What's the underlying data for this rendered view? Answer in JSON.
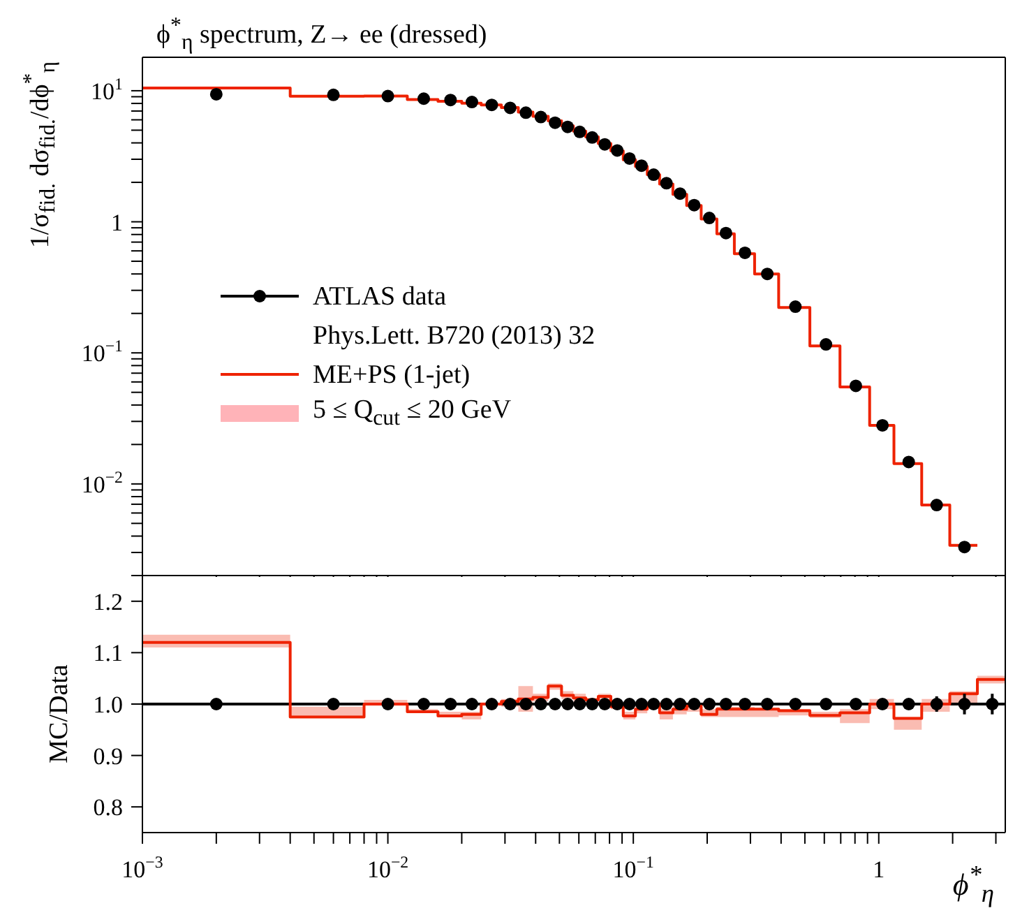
{
  "chart_data": [
    {
      "type": "histogram",
      "title": "ϕ$^{*}$$_{η}$ spectrum, Z→ ee (dressed)",
      "ylabel": "1/σ$_{fid.}$ dσ$_{fid.}$/dϕ$^{*}$$_{η}$",
      "log": "xy",
      "legend": "left",
      "tick_labels": "y",
      "annotations": [
        "Phys.Lett. B720 (2013) 32"
      ],
      "bins": [
        0.001,
        0.004,
        0.008,
        0.012,
        0.016,
        0.02,
        0.024,
        0.029,
        0.034,
        0.039,
        0.045,
        0.051,
        0.057,
        0.064,
        0.072,
        0.081,
        0.091,
        0.102,
        0.114,
        0.128,
        0.145,
        0.165,
        0.189,
        0.219,
        0.258,
        0.312,
        0.391,
        0.524,
        0.695,
        0.918,
        1.153,
        1.496,
        1.947,
        2.522
      ],
      "xlim": [
        0.001,
        3.277
      ],
      "xticks": [
        {
          "value": 0.001,
          "label": null
        },
        {
          "value": 0.002,
          "label": null
        },
        {
          "value": 0.003,
          "label": null
        },
        {
          "value": 0.004,
          "label": null
        },
        {
          "value": 0.005,
          "label": null
        },
        {
          "value": 0.006,
          "label": null
        },
        {
          "value": 0.007,
          "label": null
        },
        {
          "value": 0.008,
          "label": null
        },
        {
          "value": 0.009,
          "label": null
        },
        {
          "value": 0.01,
          "label": null
        },
        {
          "value": 0.02,
          "label": null
        },
        {
          "value": 0.03,
          "label": null
        },
        {
          "value": 0.04,
          "label": null
        },
        {
          "value": 0.05,
          "label": null
        },
        {
          "value": 0.06,
          "label": null
        },
        {
          "value": 0.07,
          "label": null
        },
        {
          "value": 0.08,
          "label": null
        },
        {
          "value": 0.09,
          "label": null
        },
        {
          "value": 0.1,
          "label": null
        },
        {
          "value": 0.2,
          "label": null
        },
        {
          "value": 0.3,
          "label": null
        },
        {
          "value": 0.4,
          "label": null
        },
        {
          "value": 0.5,
          "label": null
        },
        {
          "value": 0.6,
          "label": null
        },
        {
          "value": 0.7,
          "label": null
        },
        {
          "value": 0.8,
          "label": null
        },
        {
          "value": 0.9,
          "label": null
        },
        {
          "value": 1,
          "label": null
        },
        {
          "value": 2,
          "label": null
        },
        {
          "value": 3,
          "label": null
        }
      ],
      "ylim": [
        0.002,
        18
      ],
      "yticks": [
        {
          "value": 0.002,
          "label": null
        },
        {
          "value": 0.003,
          "label": null
        },
        {
          "value": 0.004,
          "label": null
        },
        {
          "value": 0.005,
          "label": null
        },
        {
          "value": 0.006,
          "label": null
        },
        {
          "value": 0.007,
          "label": null
        },
        {
          "value": 0.008,
          "label": null
        },
        {
          "value": 0.009,
          "label": null
        },
        {
          "value": 0.01,
          "label": "10$^{−2}$"
        },
        {
          "value": 0.02,
          "label": null
        },
        {
          "value": 0.03,
          "label": null
        },
        {
          "value": 0.04,
          "label": null
        },
        {
          "value": 0.05,
          "label": null
        },
        {
          "value": 0.06,
          "label": null
        },
        {
          "value": 0.07,
          "label": null
        },
        {
          "value": 0.08,
          "label": null
        },
        {
          "value": 0.09,
          "label": null
        },
        {
          "value": 0.1,
          "label": "10$^{−1}$"
        },
        {
          "value": 0.2,
          "label": null
        },
        {
          "value": 0.3,
          "label": null
        },
        {
          "value": 0.4,
          "label": null
        },
        {
          "value": 0.5,
          "label": null
        },
        {
          "value": 0.6,
          "label": null
        },
        {
          "value": 0.7,
          "label": null
        },
        {
          "value": 0.8,
          "label": null
        },
        {
          "value": 0.9,
          "label": null
        },
        1,
        {
          "value": 2,
          "label": null
        },
        {
          "value": 3,
          "label": null
        },
        {
          "value": 4,
          "label": null
        },
        {
          "value": 5,
          "label": null
        },
        {
          "value": 6,
          "label": null
        },
        {
          "value": 7,
          "label": null
        },
        {
          "value": 8,
          "label": null
        },
        {
          "value": 9,
          "label": null
        },
        {
          "value": 10,
          "label": "10$^{1}$"
        }
      ],
      "series": [
        {
          "name": "ATLAS data",
          "type": "scatter",
          "color": "#000000",
          "marker": "circle",
          "x": [
            0.002,
            0.006,
            0.01,
            0.014,
            0.018,
            0.022,
            0.0265,
            0.0315,
            0.0365,
            0.042,
            0.048,
            0.054,
            0.0605,
            0.068,
            0.0765,
            0.086,
            0.0965,
            0.108,
            0.121,
            0.1365,
            0.155,
            0.177,
            0.204,
            0.2385,
            0.285,
            0.3515,
            0.4575,
            0.6095,
            0.8065,
            1.0355,
            1.3245,
            1.7215,
            2.2345
          ],
          "values": [
            9.4,
            9.3,
            9.1,
            8.7,
            8.5,
            8.2,
            7.8,
            7.4,
            6.8,
            6.3,
            5.7,
            5.3,
            4.85,
            4.4,
            3.9,
            3.5,
            3.04,
            2.68,
            2.29,
            1.97,
            1.64,
            1.34,
            1.07,
            0.82,
            0.58,
            0.4,
            0.225,
            0.116,
            0.056,
            0.028,
            0.0147,
            0.0069,
            0.0033
          ]
        },
        {
          "name": "ME+PS (1-jet)",
          "color": "#ee2200",
          "values": [
            10.5,
            9.07,
            9.1,
            8.57,
            8.3,
            8.04,
            7.8,
            7.44,
            6.87,
            6.38,
            5.9,
            5.39,
            4.91,
            4.44,
            3.96,
            3.48,
            2.97,
            2.65,
            2.29,
            1.94,
            1.62,
            1.33,
            1.05,
            0.81,
            0.57,
            0.4,
            0.222,
            0.113,
            0.055,
            0.028,
            0.0143,
            0.0069,
            0.0034
          ]
        },
        {
          "name": "5 ≤ Q$_{cut}$ ≤ 20 GeV",
          "type": "area",
          "color": "#ffb3b8"
        }
      ]
    },
    {
      "type": "step",
      "xlabel": "ϕ$^{*}$$_{η}$",
      "ylabel": "MC/Data",
      "log": "x",
      "xlim": [
        0.001,
        3.277
      ],
      "xticks": [
        {
          "value": 0.001,
          "label": "10$^{−3}$"
        },
        {
          "value": 0.002,
          "label": null
        },
        {
          "value": 0.003,
          "label": null
        },
        {
          "value": 0.004,
          "label": null
        },
        {
          "value": 0.005,
          "label": null
        },
        {
          "value": 0.006,
          "label": null
        },
        {
          "value": 0.007,
          "label": null
        },
        {
          "value": 0.008,
          "label": null
        },
        {
          "value": 0.009,
          "label": null
        },
        {
          "value": 0.01,
          "label": "10$^{−2}$"
        },
        {
          "value": 0.02,
          "label": null
        },
        {
          "value": 0.03,
          "label": null
        },
        {
          "value": 0.04,
          "label": null
        },
        {
          "value": 0.05,
          "label": null
        },
        {
          "value": 0.06,
          "label": null
        },
        {
          "value": 0.07,
          "label": null
        },
        {
          "value": 0.08,
          "label": null
        },
        {
          "value": 0.09,
          "label": null
        },
        {
          "value": 0.1,
          "label": "10$^{−1}$"
        },
        {
          "value": 0.2,
          "label": null
        },
        {
          "value": 0.3,
          "label": null
        },
        {
          "value": 0.4,
          "label": null
        },
        {
          "value": 0.5,
          "label": null
        },
        {
          "value": 0.6,
          "label": null
        },
        {
          "value": 0.7,
          "label": null
        },
        {
          "value": 0.8,
          "label": null
        },
        {
          "value": 0.9,
          "label": null
        },
        1,
        {
          "value": 2,
          "label": null
        },
        {
          "value": 3,
          "label": null
        }
      ],
      "ylim": [
        0.75,
        1.25
      ],
      "yticks": [
        0.8,
        0.9,
        {
          "value": 1,
          "label": "1.0"
        },
        1.1,
        1.2
      ],
      "ref_lines": [
        {
          "axis": "y",
          "value": 1,
          "color": "#000000"
        }
      ],
      "series": [
        {
          "color": "#ee2200",
          "x": [
            0.001,
            0.004,
            0.008,
            0.012,
            0.016,
            0.02,
            0.024,
            0.029,
            0.034,
            0.039,
            0.045,
            0.051,
            0.057,
            0.064,
            0.072,
            0.081,
            0.091,
            0.102,
            0.114,
            0.128,
            0.145,
            0.165,
            0.189,
            0.219,
            0.258,
            0.312,
            0.391,
            0.524,
            0.695,
            0.918,
            1.153,
            1.496,
            1.947,
            2.522,
            3.277
          ],
          "values": [
            1.12,
            0.975,
            1.0,
            0.985,
            0.977,
            0.98,
            1.0,
            1.005,
            1.01,
            1.013,
            1.035,
            1.017,
            1.012,
            1.008,
            1.015,
            0.995,
            0.977,
            0.99,
            1.0,
            0.983,
            0.99,
            0.996,
            0.98,
            0.99,
            0.99,
            0.99,
            0.987,
            0.978,
            0.983,
            1.0,
            0.972,
            1.0,
            1.02,
            1.048,
            1.048
          ],
          "lower": [
            1.11,
            0.975,
            0.997,
            0.983,
            0.975,
            0.97,
            0.998,
            0.995,
            0.985,
            1.005,
            1.028,
            1.01,
            1.005,
            1.0,
            1.008,
            0.99,
            0.97,
            0.982,
            0.995,
            0.97,
            0.98,
            0.985,
            0.975,
            0.975,
            0.975,
            0.975,
            0.978,
            0.973,
            0.963,
            0.99,
            0.95,
            0.985,
            1.0,
            1.04,
            1.04
          ],
          "upper": [
            1.135,
            0.995,
            1.008,
            0.99,
            0.985,
            0.985,
            1.003,
            1.01,
            1.035,
            1.02,
            1.04,
            1.025,
            1.02,
            1.012,
            1.02,
            1.0,
            0.985,
            0.997,
            1.005,
            0.99,
            1.0,
            1.0,
            0.99,
            0.995,
            0.995,
            0.99,
            0.99,
            0.985,
            0.99,
            1.01,
            0.975,
            1.01,
            1.025,
            1.055,
            1.055
          ]
        },
        {
          "type": "scatter",
          "color": "#000000",
          "marker": "circle",
          "x": [
            0.002,
            0.006,
            0.01,
            0.014,
            0.018,
            0.022,
            0.0265,
            0.0315,
            0.0365,
            0.042,
            0.048,
            0.054,
            0.0605,
            0.068,
            0.0765,
            0.086,
            0.0965,
            0.108,
            0.121,
            0.1365,
            0.155,
            0.177,
            0.204,
            0.2385,
            0.285,
            0.3515,
            0.4575,
            0.6095,
            0.8065,
            1.0355,
            1.3245,
            1.7215,
            2.2345,
            2.8995
          ],
          "values": [
            1,
            1,
            1,
            1,
            1,
            1,
            1,
            1,
            1,
            1,
            1,
            1,
            1,
            1,
            1,
            1,
            1,
            1,
            1,
            1,
            1,
            1,
            1,
            1,
            1,
            1,
            1,
            1,
            1,
            1,
            1,
            1,
            1,
            1
          ],
          "errors": [
            null,
            null,
            null,
            null,
            null,
            null,
            null,
            null,
            null,
            null,
            null,
            null,
            null,
            null,
            null,
            null,
            null,
            null,
            null,
            null,
            null,
            null,
            null,
            null,
            null,
            null,
            null,
            null,
            null,
            0.005,
            0.01,
            0.015,
            0.02,
            0.02
          ]
        }
      ]
    }
  ]
}
